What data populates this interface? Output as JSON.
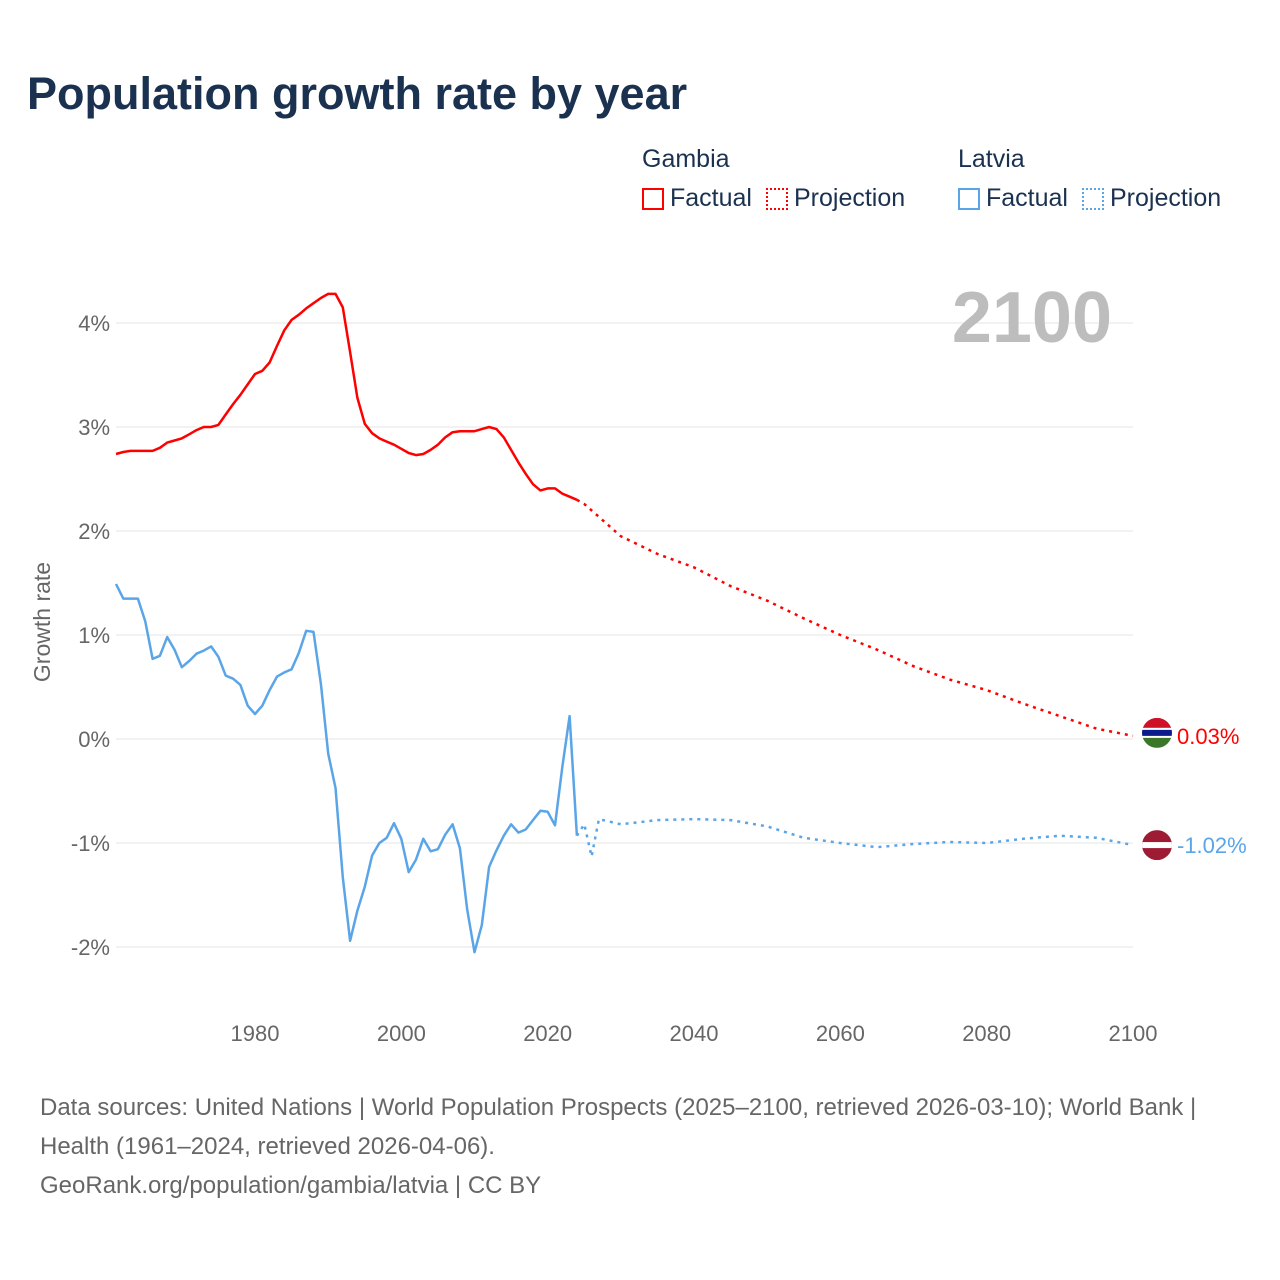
{
  "title": "Population growth rate by year",
  "legend": {
    "groups": [
      {
        "name": "Gambia",
        "color": "#ff0000",
        "factual": "Factual",
        "projection": "Projection"
      },
      {
        "name": "Latvia",
        "color": "#5aa5e8",
        "factual": "Factual",
        "projection": "Projection"
      }
    ]
  },
  "chart_data": {
    "type": "line",
    "title": "Population growth rate by year",
    "xlabel": "",
    "ylabel": "Growth rate",
    "xlim": [
      1961,
      2100
    ],
    "ylim": [
      -2.5,
      4.5
    ],
    "xticks": [
      1980,
      2000,
      2020,
      2040,
      2060,
      2080,
      2100
    ],
    "yticks": [
      -2,
      -1,
      0,
      1,
      2,
      3,
      4
    ],
    "ytick_labels": [
      "-2%",
      "-1%",
      "0%",
      "1%",
      "2%",
      "3%",
      "4%"
    ],
    "grid": true,
    "year_label": "2100",
    "series": [
      {
        "name": "Gambia",
        "color": "#ff0000",
        "end_label": "0.03%",
        "flag": "gambia-flag",
        "factual": {
          "x": [
            1961,
            1962,
            1963,
            1964,
            1965,
            1966,
            1967,
            1968,
            1969,
            1970,
            1971,
            1972,
            1973,
            1974,
            1975,
            1976,
            1977,
            1978,
            1979,
            1980,
            1981,
            1982,
            1983,
            1984,
            1985,
            1986,
            1987,
            1988,
            1989,
            1990,
            1991,
            1992,
            1993,
            1994,
            1995,
            1996,
            1997,
            1998,
            1999,
            2000,
            2001,
            2002,
            2003,
            2004,
            2005,
            2006,
            2007,
            2008,
            2009,
            2010,
            2011,
            2012,
            2013,
            2014,
            2015,
            2016,
            2017,
            2018,
            2019,
            2020,
            2021,
            2022,
            2023,
            2024
          ],
          "y": [
            2.74,
            2.76,
            2.77,
            2.77,
            2.77,
            2.77,
            2.8,
            2.85,
            2.87,
            2.89,
            2.93,
            2.97,
            3.0,
            3.0,
            3.02,
            3.12,
            3.22,
            3.31,
            3.41,
            3.51,
            3.54,
            3.62,
            3.78,
            3.93,
            4.03,
            4.08,
            4.14,
            4.19,
            4.24,
            4.28,
            4.28,
            4.15,
            3.72,
            3.28,
            3.03,
            2.94,
            2.89,
            2.86,
            2.83,
            2.79,
            2.75,
            2.73,
            2.74,
            2.78,
            2.83,
            2.9,
            2.95,
            2.96,
            2.96,
            2.96,
            2.98,
            3.0,
            2.98,
            2.9,
            2.78,
            2.66,
            2.55,
            2.45,
            2.39,
            2.41,
            2.41,
            2.36,
            2.33,
            2.3
          ]
        },
        "projection": {
          "x": [
            2024,
            2025,
            2030,
            2035,
            2040,
            2045,
            2050,
            2055,
            2060,
            2065,
            2070,
            2075,
            2080,
            2085,
            2090,
            2095,
            2100
          ],
          "y": [
            2.3,
            2.26,
            1.95,
            1.78,
            1.65,
            1.47,
            1.33,
            1.16,
            1.0,
            0.86,
            0.7,
            0.57,
            0.47,
            0.34,
            0.22,
            0.1,
            0.03
          ]
        }
      },
      {
        "name": "Latvia",
        "color": "#5aa5e8",
        "end_label": "-1.02%",
        "flag": "latvia-flag",
        "factual": {
          "x": [
            1961,
            1962,
            1963,
            1964,
            1965,
            1966,
            1967,
            1968,
            1969,
            1970,
            1971,
            1972,
            1973,
            1974,
            1975,
            1976,
            1977,
            1978,
            1979,
            1980,
            1981,
            1982,
            1983,
            1984,
            1985,
            1986,
            1987,
            1988,
            1989,
            1990,
            1991,
            1992,
            1993,
            1994,
            1995,
            1996,
            1997,
            1998,
            1999,
            2000,
            2001,
            2002,
            2003,
            2004,
            2005,
            2006,
            2007,
            2008,
            2009,
            2010,
            2011,
            2012,
            2013,
            2014,
            2015,
            2016,
            2017,
            2018,
            2019,
            2020,
            2021,
            2022,
            2023,
            2024
          ],
          "y": [
            1.49,
            1.35,
            1.35,
            1.35,
            1.13,
            0.77,
            0.8,
            0.98,
            0.86,
            0.69,
            0.75,
            0.82,
            0.85,
            0.89,
            0.79,
            0.61,
            0.58,
            0.52,
            0.32,
            0.24,
            0.32,
            0.47,
            0.6,
            0.64,
            0.67,
            0.83,
            1.04,
            1.03,
            0.53,
            -0.14,
            -0.47,
            -1.33,
            -1.94,
            -1.65,
            -1.42,
            -1.12,
            -1.0,
            -0.95,
            -0.81,
            -0.96,
            -1.28,
            -1.16,
            -0.96,
            -1.08,
            -1.06,
            -0.92,
            -0.82,
            -1.05,
            -1.64,
            -2.05,
            -1.79,
            -1.23,
            -1.07,
            -0.93,
            -0.82,
            -0.9,
            -0.87,
            -0.78,
            -0.69,
            -0.7,
            -0.83,
            -0.27,
            0.22,
            -0.93
          ]
        },
        "projection": {
          "x": [
            2024,
            2025,
            2026,
            2027,
            2030,
            2035,
            2040,
            2045,
            2050,
            2055,
            2060,
            2065,
            2070,
            2075,
            2080,
            2085,
            2090,
            2095,
            2100
          ],
          "y": [
            -0.93,
            -0.82,
            -1.13,
            -0.77,
            -0.82,
            -0.78,
            -0.77,
            -0.78,
            -0.84,
            -0.95,
            -1.0,
            -1.04,
            -1.01,
            -0.99,
            -1.0,
            -0.96,
            -0.93,
            -0.95,
            -1.02
          ]
        }
      }
    ]
  },
  "footer": {
    "sources": "Data sources: United Nations | World Population Prospects (2025–2100, retrieved 2026-03-10); World Bank | Health (1961–2024, retrieved 2026-04-06).",
    "credit": "GeoRank.org/population/gambia/latvia | CC BY"
  }
}
